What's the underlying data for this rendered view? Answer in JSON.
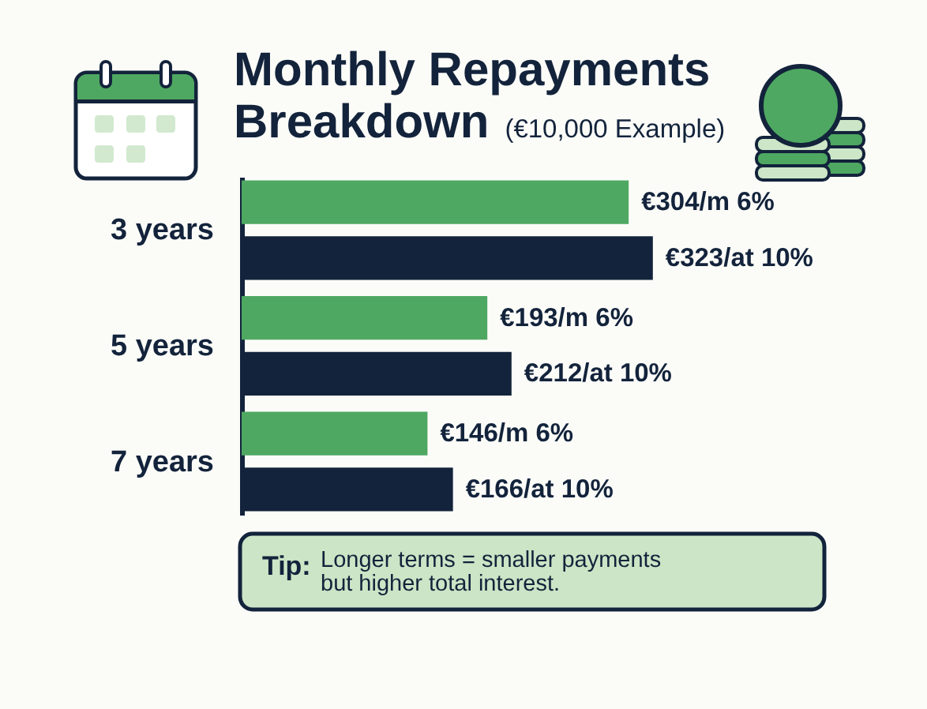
{
  "chart_data": {
    "type": "bar",
    "orientation": "horizontal",
    "title": "Monthly Repayments Breakdown",
    "subtitle": "(€10,000 Example)",
    "categories": [
      "3 years",
      "5 years",
      "7 years"
    ],
    "series": [
      {
        "color": "#4ea862",
        "values": [
          304,
          193,
          146
        ],
        "value_labels": [
          "€304/m 6%",
          "€193/m 6%",
          "€146/m 6%"
        ]
      },
      {
        "color": "#13233b",
        "values": [
          323,
          212,
          166
        ],
        "value_labels": [
          "€323/at 10%",
          "€212/at 10%",
          "€166/at 10%"
        ]
      }
    ],
    "annotations": [
      "Tip:",
      "Longer terms = smaller payments but higher total interest."
    ]
  }
}
